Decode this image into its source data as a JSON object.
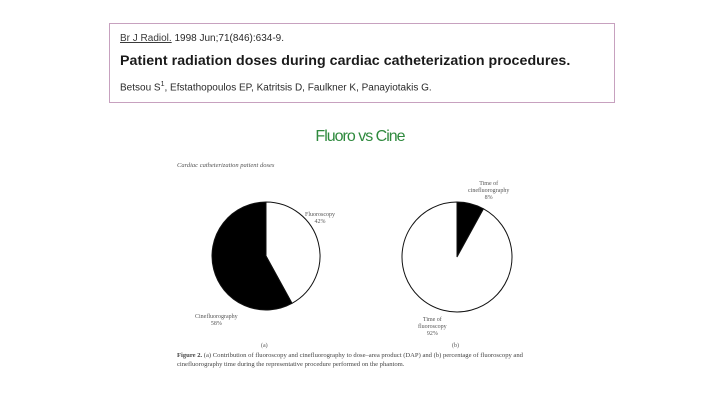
{
  "citation": {
    "journal": "Br J Radiol.",
    "details": " 1998 Jun;71(846):634-9.",
    "title": "Patient radiation doses during cardiac catheterization procedures.",
    "authors_first": "Betsou S",
    "authors_first_sup": "1",
    "authors_rest": ", Efstathopoulos EP, Katritsis D, Faulkner K, Panayiotakis G."
  },
  "slide_title": "Fluoro vs Cine",
  "figure": {
    "header": "Cardiac catheterization patient doses",
    "pie_a": {
      "slice_label_1": "Fluoroscopy",
      "slice_pct_1": "42%",
      "slice_label_2": "Cinefluorography",
      "slice_pct_2": "58%",
      "panel_label": "(a)"
    },
    "pie_b": {
      "slice_label_1": "Time of",
      "slice_label_1b": "cinefluorography",
      "slice_pct_1": "8%",
      "slice_label_2": "Time of",
      "slice_label_2b": "fluoroscopy",
      "slice_pct_2": "92%",
      "panel_label": "(b)"
    },
    "caption_num": "Figure 2.",
    "caption_text": " (a) Contribution of fluoroscopy and cinefluorography to dose–area product (DAP) and (b) percentage of fluoroscopy and cinefluorography time during the representative procedure performed on the phantom."
  },
  "chart_data": [
    {
      "type": "pie",
      "title": "",
      "categories": [
        "Fluoroscopy",
        "Cinefluorography"
      ],
      "values": [
        42,
        58
      ],
      "colors": [
        "#ffffff",
        "#000000"
      ]
    },
    {
      "type": "pie",
      "title": "",
      "categories": [
        "Time of cinefluorography",
        "Time of fluoroscopy"
      ],
      "values": [
        8,
        92
      ],
      "colors": [
        "#000000",
        "#ffffff"
      ]
    }
  ]
}
